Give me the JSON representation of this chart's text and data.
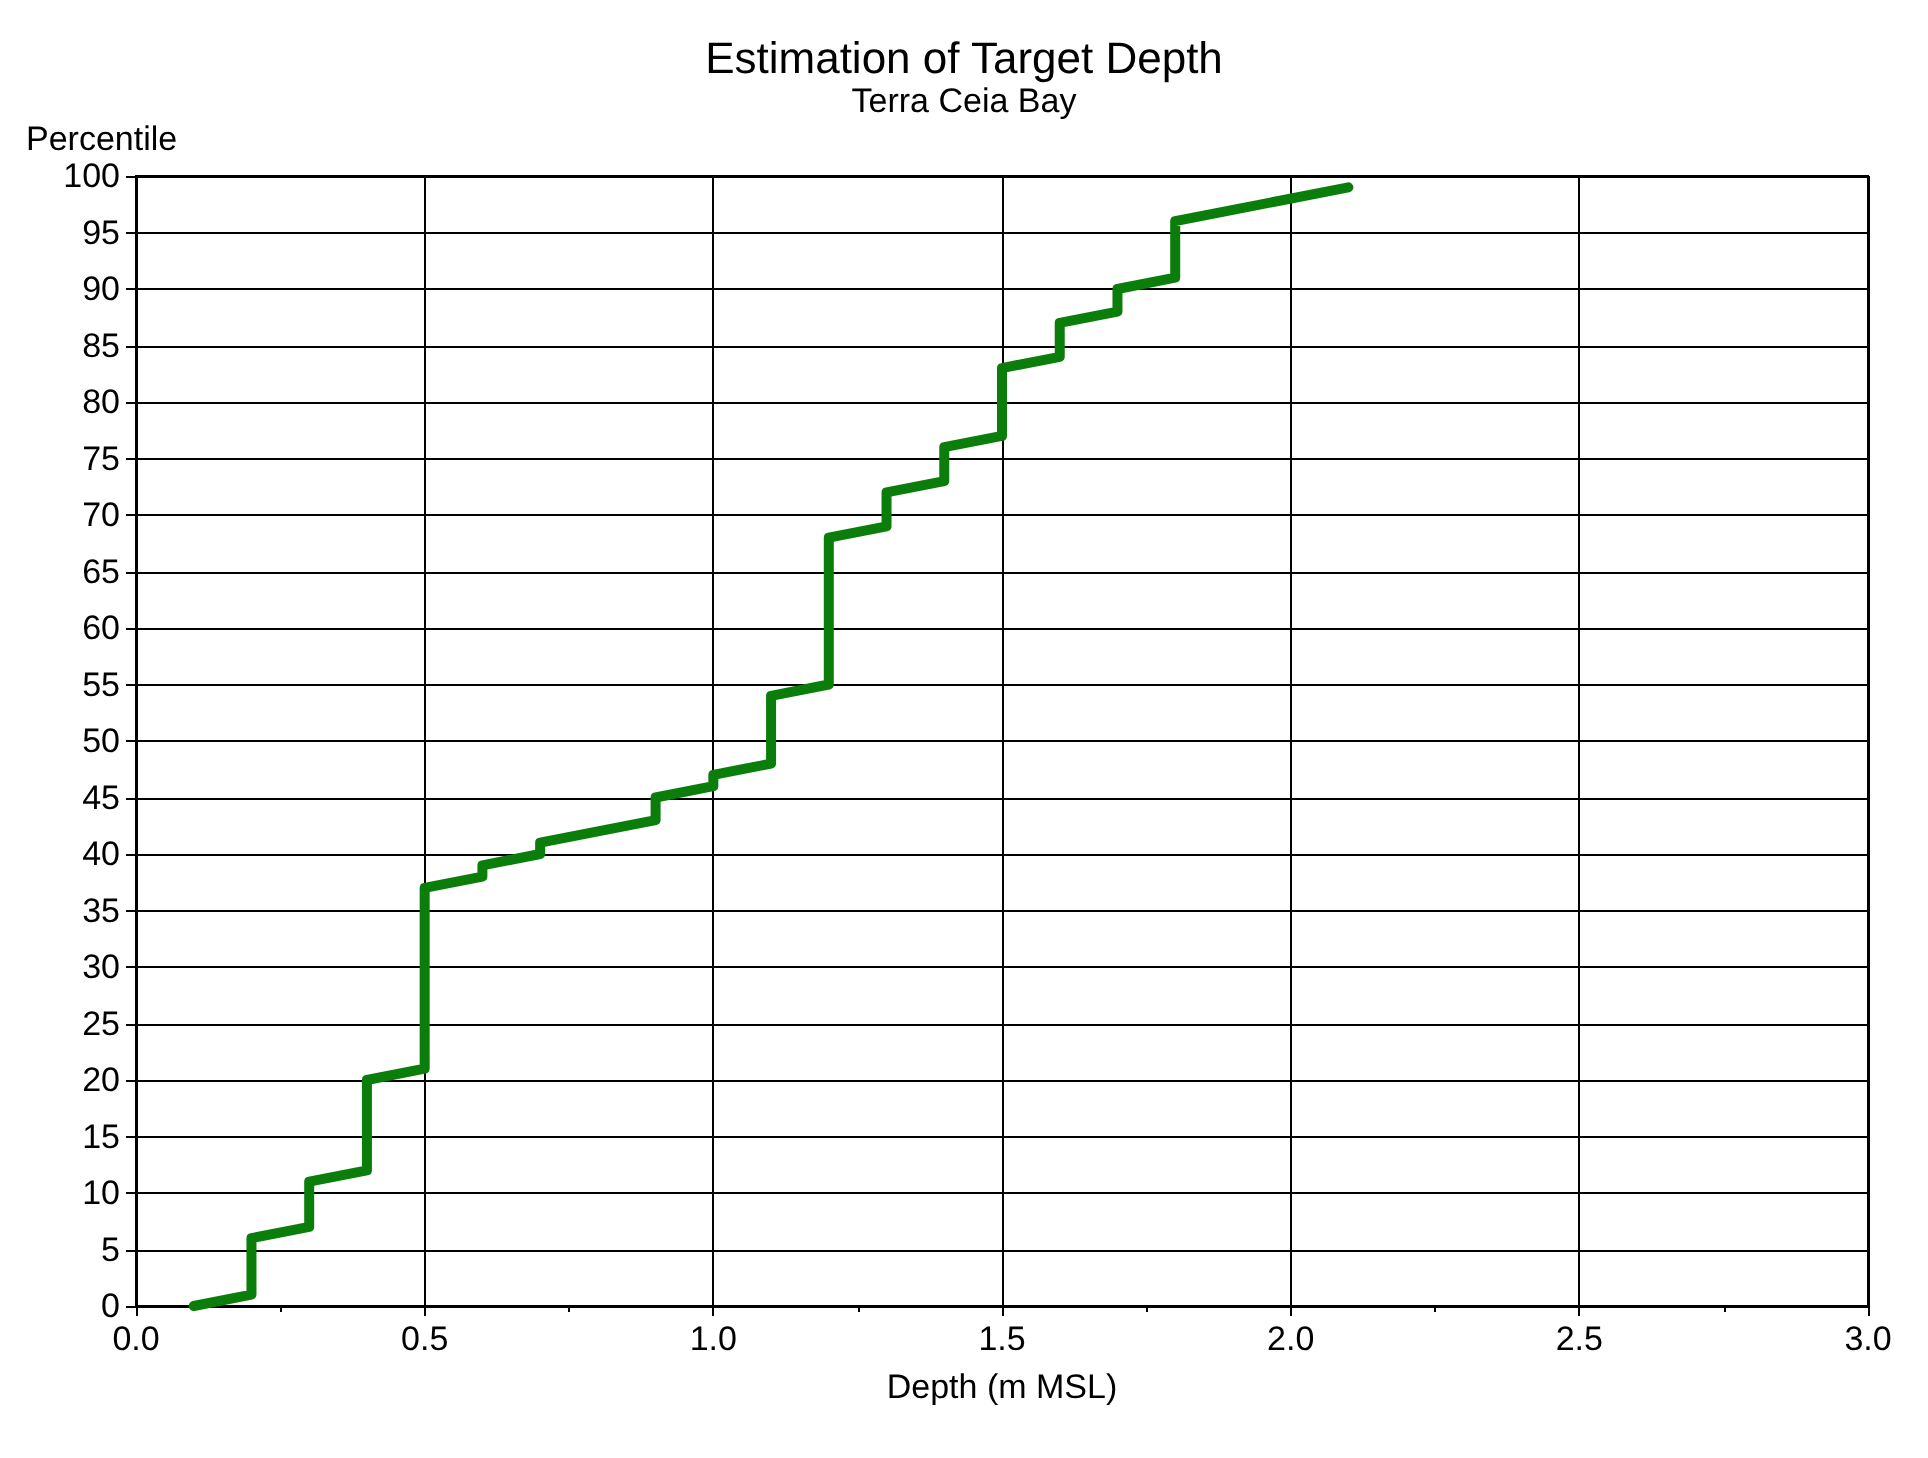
{
  "chart_data": {
    "type": "line",
    "title": "Estimation of Target Depth",
    "subtitle": "Terra Ceia Bay",
    "xlabel": "Depth (m MSL)",
    "ylabel": "Percentile",
    "x": [
      0.1,
      0.2,
      0.2,
      0.3,
      0.3,
      0.4,
      0.4,
      0.5,
      0.5,
      0.6,
      0.6,
      0.7,
      0.7,
      0.9,
      0.9,
      1.0,
      1.0,
      1.1,
      1.1,
      1.2,
      1.2,
      1.3,
      1.3,
      1.4,
      1.4,
      1.5,
      1.5,
      1.6,
      1.6,
      1.7,
      1.7,
      1.8,
      1.8,
      2.1
    ],
    "series": [
      {
        "color": "#0a7d0a",
        "values": [
          0,
          1,
          6,
          7,
          11,
          12,
          20,
          21,
          37,
          38,
          39,
          40,
          41,
          43,
          45,
          46,
          47,
          48,
          54,
          55,
          68,
          69,
          72,
          73,
          76,
          77,
          83,
          84,
          87,
          88,
          90,
          91,
          96,
          99
        ]
      }
    ],
    "xlim": [
      0,
      3
    ],
    "xticks": [
      {
        "value": 0,
        "label": "0.0"
      },
      {
        "value": 0.5,
        "label": "0.5"
      },
      {
        "value": 1,
        "label": "1.0"
      },
      {
        "value": 1.5,
        "label": "1.5"
      },
      {
        "value": 2,
        "label": "2.0"
      },
      {
        "value": 2.5,
        "label": "2.5"
      },
      {
        "value": 3,
        "label": "3.0"
      }
    ],
    "ylim": [
      0,
      100
    ],
    "yticks": [
      0,
      5,
      10,
      15,
      20,
      25,
      30,
      35,
      40,
      45,
      50,
      55,
      60,
      65,
      70,
      75,
      80,
      85,
      90,
      95,
      100
    ],
    "grid": true,
    "marker": "none",
    "line_style": "solid"
  }
}
